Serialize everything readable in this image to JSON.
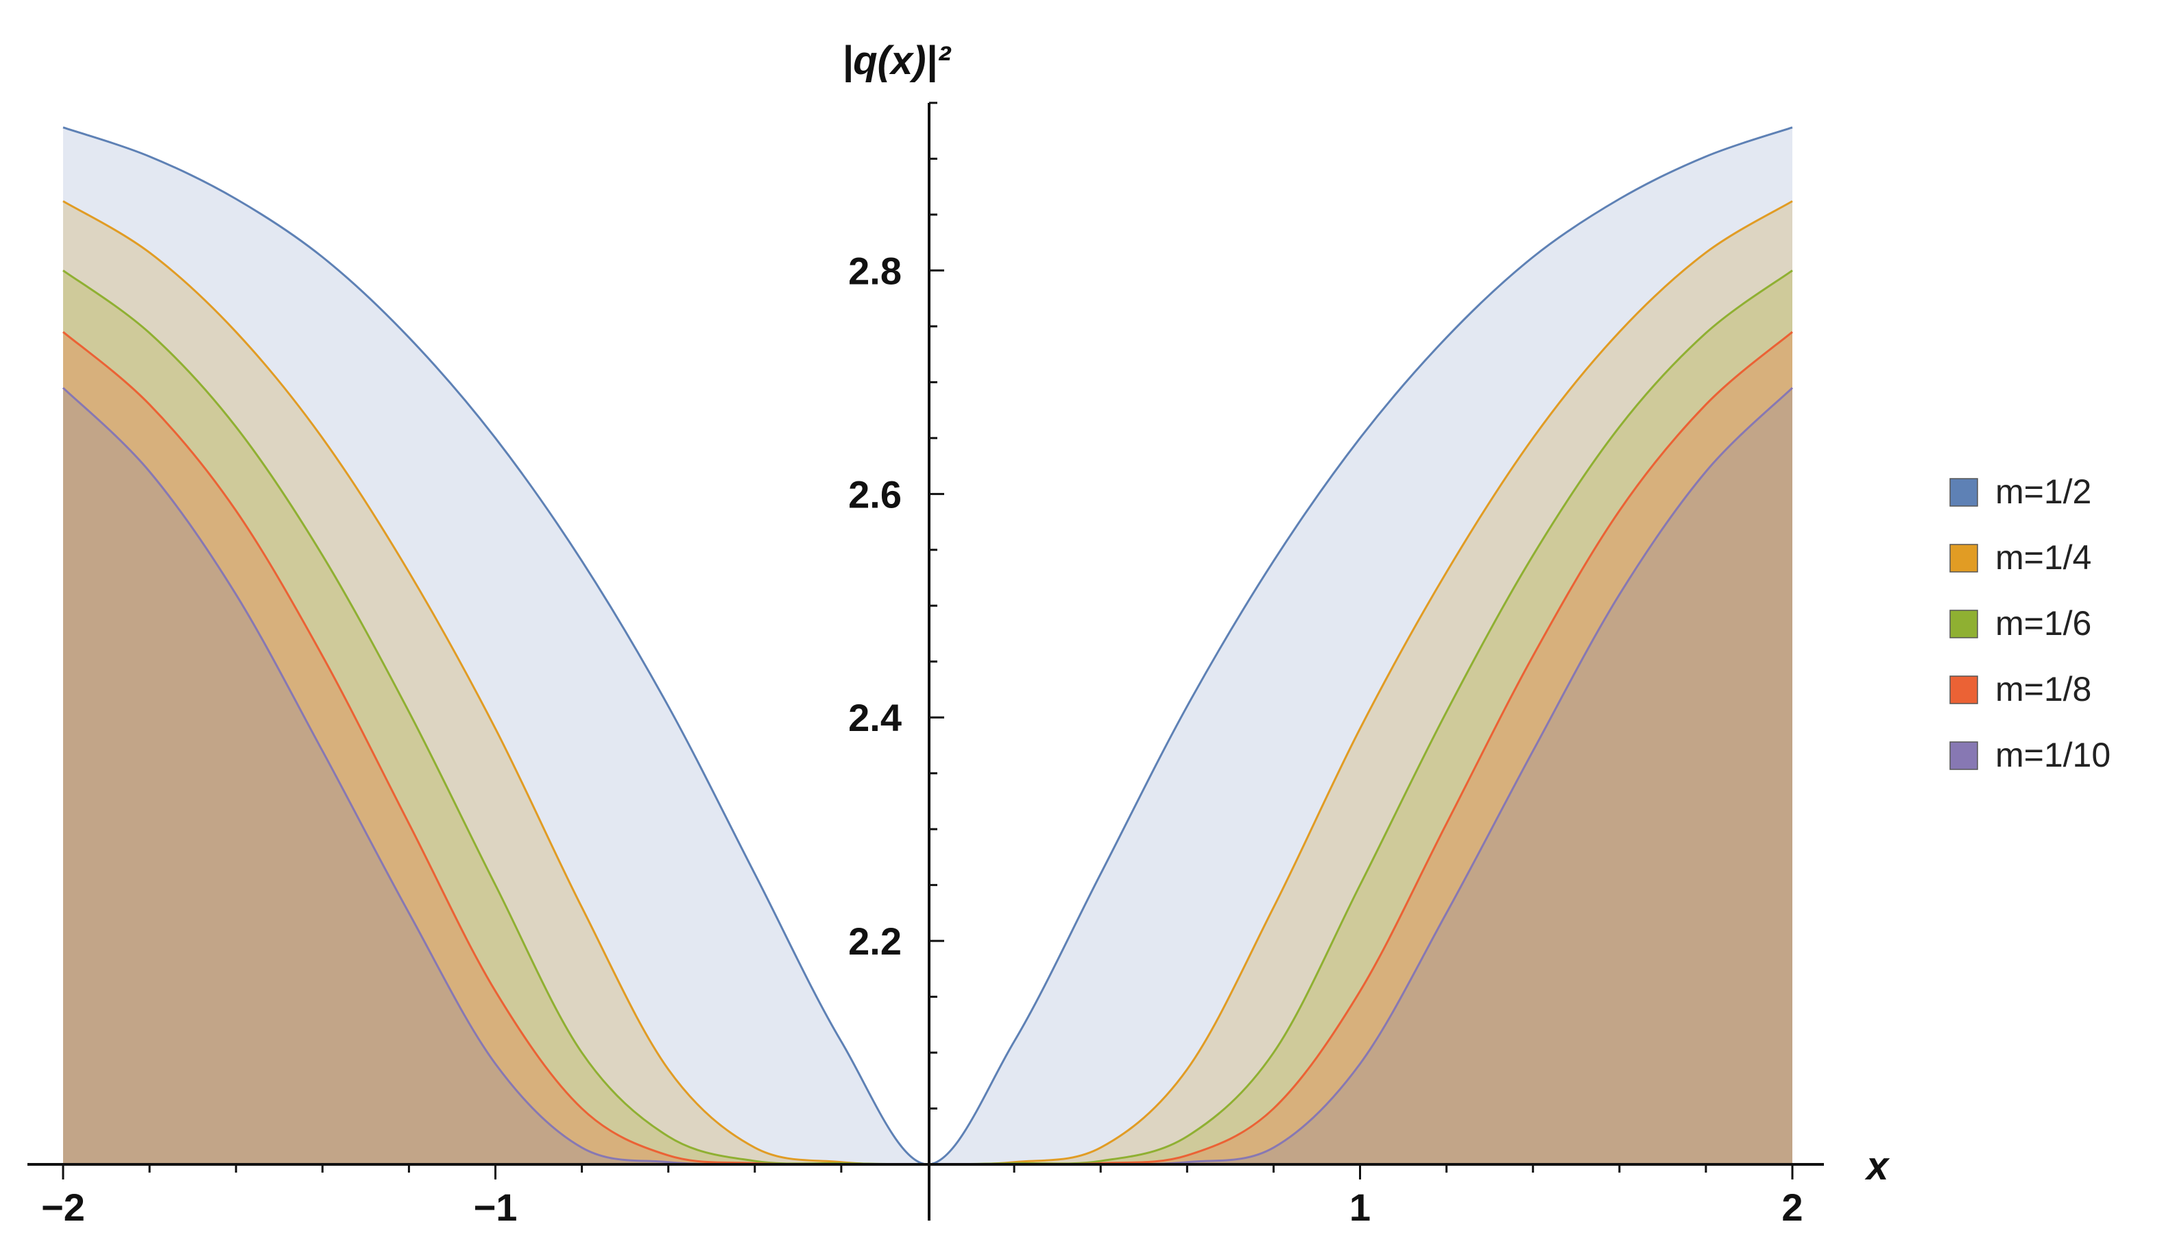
{
  "chart_data": {
    "type": "area",
    "xlabel": "x",
    "ylabel": "|q(x)|²",
    "xlim": [
      -2,
      2
    ],
    "ylim": [
      2.0,
      2.95
    ],
    "x_ticks": [
      -2,
      -1,
      1,
      2
    ],
    "x_tick_labels": [
      "−2",
      "−1",
      "1",
      "2"
    ],
    "y_ticks": [
      2.2,
      2.4,
      2.6,
      2.8
    ],
    "y_tick_labels": [
      "2.2",
      "2.4",
      "2.6",
      "2.8"
    ],
    "legend_position": "right",
    "x": [
      -2.0,
      -1.8,
      -1.6,
      -1.4,
      -1.2,
      -1.0,
      -0.8,
      -0.6,
      -0.4,
      -0.2,
      0.0,
      0.2,
      0.4,
      0.6,
      0.8,
      1.0,
      1.2,
      1.4,
      1.6,
      1.8,
      2.0
    ],
    "series": [
      {
        "name": "m=1/2",
        "color": "#5e81b5",
        "fill": "#e3e8f2",
        "values": [
          2.928,
          2.902,
          2.864,
          2.812,
          2.74,
          2.65,
          2.54,
          2.41,
          2.26,
          2.11,
          2.0,
          2.11,
          2.26,
          2.41,
          2.54,
          2.65,
          2.74,
          2.812,
          2.864,
          2.902,
          2.928
        ]
      },
      {
        "name": "m=1/4",
        "color": "#e19c24",
        "fill": "#ddd5c2",
        "values": [
          2.862,
          2.816,
          2.745,
          2.65,
          2.53,
          2.39,
          2.23,
          2.085,
          2.015,
          2.002,
          2.0,
          2.002,
          2.015,
          2.085,
          2.23,
          2.39,
          2.53,
          2.65,
          2.745,
          2.816,
          2.862
        ]
      },
      {
        "name": "m=1/6",
        "color": "#8fb032",
        "fill": "#cfca9a",
        "values": [
          2.8,
          2.744,
          2.66,
          2.545,
          2.405,
          2.25,
          2.1,
          2.025,
          2.003,
          2.001,
          2.0,
          2.001,
          2.003,
          2.025,
          2.1,
          2.25,
          2.405,
          2.545,
          2.66,
          2.744,
          2.8
        ]
      },
      {
        "name": "m=1/8",
        "color": "#eb6235",
        "fill": "#d7b07c",
        "values": [
          2.745,
          2.68,
          2.585,
          2.455,
          2.305,
          2.155,
          2.05,
          2.008,
          2.001,
          2.0,
          2.0,
          2.0,
          2.001,
          2.008,
          2.05,
          2.155,
          2.305,
          2.455,
          2.585,
          2.68,
          2.745
        ]
      },
      {
        "name": "m=1/10",
        "color": "#8778b3",
        "fill": "#c2a588",
        "values": [
          2.695,
          2.62,
          2.51,
          2.37,
          2.225,
          2.09,
          2.015,
          2.002,
          2.0,
          2.0,
          2.0,
          2.0,
          2.0,
          2.002,
          2.015,
          2.09,
          2.225,
          2.37,
          2.51,
          2.62,
          2.695
        ]
      }
    ]
  }
}
